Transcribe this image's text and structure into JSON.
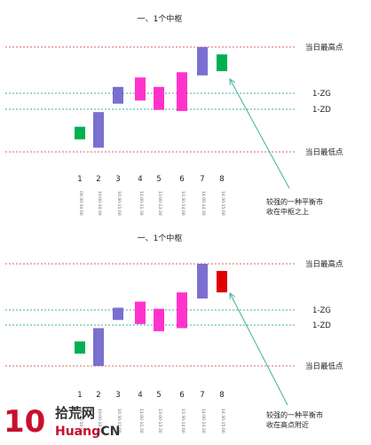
{
  "panels": [
    {
      "title": "一、1个中枢",
      "levels": {
        "high": "当日最高点",
        "zg": "1-ZG",
        "zd": "1-ZD",
        "low": "当日最低点"
      },
      "bars": [
        {
          "index": "1",
          "time": "09:30-10:00",
          "color": "#00b050",
          "open": 0.24,
          "close": 0.12
        },
        {
          "index": "2",
          "time": "10:00-10:30",
          "color": "#7b6fcf",
          "open": 0.04,
          "close": 0.38
        },
        {
          "index": "3",
          "time": "10:30-11:00",
          "color": "#7b6fcf",
          "open": 0.46,
          "close": 0.62
        },
        {
          "index": "4",
          "time": "11:00-11:30",
          "color": "#ff33cc",
          "open": 0.71,
          "close": 0.49
        },
        {
          "index": "5",
          "time": "13:00-13:30",
          "color": "#ff33cc",
          "open": 0.62,
          "close": 0.4
        },
        {
          "index": "6",
          "time": "13:30-14:00",
          "color": "#ff33cc",
          "open": 0.76,
          "close": 0.39
        },
        {
          "index": "7",
          "time": "14:00-14:30",
          "color": "#7b6fcf",
          "open": 0.73,
          "close": 1.0
        },
        {
          "index": "8",
          "time": "14:30-15:00",
          "color": "#00b050",
          "open": 0.77,
          "close": 0.93
        }
      ],
      "note": [
        "较强的一种平衡市",
        "收在中枢之上"
      ]
    },
    {
      "title": "一、1个中枢",
      "levels": {
        "high": "当日最高点",
        "zg": "1-ZG",
        "zd": "1-ZD",
        "low": "当日最低点"
      },
      "bars": [
        {
          "index": "1",
          "time": "09:30-10:00",
          "color": "#00b050",
          "open": 0.24,
          "close": 0.12
        },
        {
          "index": "2",
          "time": "10:00-10:30",
          "color": "#7b6fcf",
          "open": 0.0,
          "close": 0.37
        },
        {
          "index": "3",
          "time": "10:30-11:00",
          "color": "#7b6fcf",
          "open": 0.45,
          "close": 0.57
        },
        {
          "index": "4",
          "time": "11:00-11:30",
          "color": "#ff33cc",
          "open": 0.63,
          "close": 0.41
        },
        {
          "index": "5",
          "time": "13:00-13:30",
          "color": "#ff33cc",
          "open": 0.56,
          "close": 0.34
        },
        {
          "index": "6",
          "time": "13:30-14:00",
          "color": "#ff33cc",
          "open": 0.72,
          "close": 0.37
        },
        {
          "index": "7",
          "time": "14:00-14:30",
          "color": "#7b6fcf",
          "open": 0.66,
          "close": 1.0
        },
        {
          "index": "8",
          "time": "14:30-15:00",
          "color": "#e00000",
          "open": 0.93,
          "close": 0.72
        }
      ],
      "note": [
        "较强的一种平衡市",
        "收在高点附近"
      ]
    }
  ],
  "colors": {
    "limit_line": "#e06060",
    "center_line": "#3bb39a",
    "arrow": "#3bb39a"
  },
  "watermark": {
    "number": "10",
    "site": "拾荒网",
    "url_a": "Huang",
    "url_b": ".CN"
  }
}
